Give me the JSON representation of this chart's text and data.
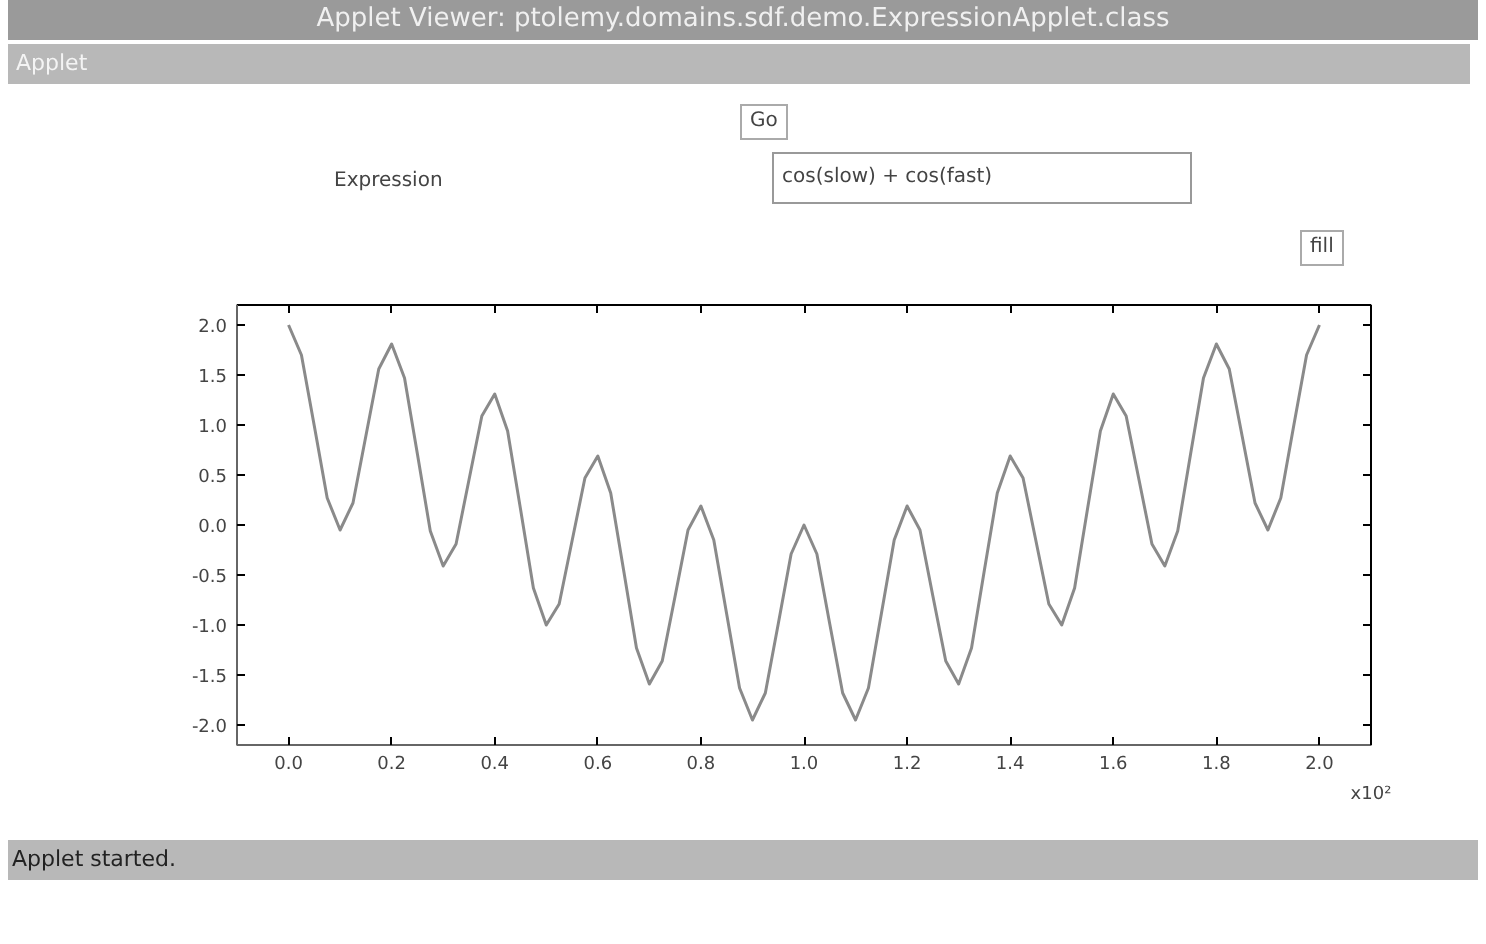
{
  "chart_data": {
    "type": "line",
    "title": "Applet Viewer: ptolemy.domains.sdf.demo.ExpressionApplet.class",
    "xlabel": "x10²",
    "annotations": [
      "Applet",
      "Go",
      "Expression",
      "cos(slow) + cos(fast)",
      "fill",
      "Applet started."
    ],
    "x": [
      0,
      0.025,
      0.05,
      0.075,
      0.1,
      0.125,
      0.15,
      0.175,
      0.2,
      0.225,
      0.25,
      0.275,
      0.3,
      0.325,
      0.35,
      0.375,
      0.4,
      0.425,
      0.45,
      0.475,
      0.5,
      0.525,
      0.55,
      0.575,
      0.6,
      0.625,
      0.65,
      0.675,
      0.7,
      0.725,
      0.75,
      0.775,
      0.8,
      0.825,
      0.85,
      0.875,
      0.9,
      0.925,
      0.95,
      0.975,
      1.0,
      1.025,
      1.05,
      1.075,
      1.1,
      1.125,
      1.15,
      1.175,
      1.2,
      1.225,
      1.25,
      1.275,
      1.3,
      1.325,
      1.35,
      1.375,
      1.4,
      1.425,
      1.45,
      1.475,
      1.5,
      1.525,
      1.55,
      1.575,
      1.6,
      1.625,
      1.65,
      1.675,
      1.7,
      1.725,
      1.75,
      1.775,
      1.8,
      1.825,
      1.85,
      1.875,
      1.9,
      1.925,
      1.95,
      1.975,
      2.0
    ],
    "series": [
      {
        "color": "#8a8a8a",
        "values": [
          2.0,
          1.7,
          0.99,
          0.27,
          -0.05,
          0.22,
          0.89,
          1.56,
          1.81,
          1.47,
          0.71,
          -0.06,
          -0.41,
          -0.19,
          0.45,
          1.09,
          1.31,
          0.94,
          0.16,
          -0.63,
          -1.0,
          -0.79,
          -0.16,
          0.47,
          0.69,
          0.32,
          -0.45,
          -1.23,
          -1.59,
          -1.36,
          -0.71,
          -0.05,
          0.19,
          -0.15,
          -0.89,
          -1.63,
          -1.95,
          -1.68,
          -0.99,
          -0.29,
          0.0,
          -0.29,
          -0.99,
          -1.68,
          -1.95,
          -1.63,
          -0.89,
          -0.15,
          0.19,
          -0.05,
          -0.71,
          -1.36,
          -1.59,
          -1.23,
          -0.45,
          0.32,
          0.69,
          0.47,
          -0.16,
          -0.79,
          -1.0,
          -0.63,
          0.16,
          0.94,
          1.31,
          1.09,
          0.45,
          -0.19,
          -0.41,
          -0.06,
          0.71,
          1.47,
          1.81,
          1.56,
          0.89,
          0.22,
          -0.05,
          0.27,
          0.99,
          1.7,
          2.0
        ]
      }
    ],
    "xlim": [
      -0.1,
      2.1
    ],
    "ylim": [
      -2.2,
      2.2
    ],
    "xticks": [
      {
        "value": 0,
        "label": "0.0"
      },
      {
        "value": 0.2,
        "label": "0.2"
      },
      {
        "value": 0.4,
        "label": "0.4"
      },
      {
        "value": 0.6,
        "label": "0.6"
      },
      {
        "value": 0.8,
        "label": "0.8"
      },
      {
        "value": 1.0,
        "label": "1.0"
      },
      {
        "value": 1.2,
        "label": "1.2"
      },
      {
        "value": 1.4,
        "label": "1.4"
      },
      {
        "value": 1.6,
        "label": "1.6"
      },
      {
        "value": 1.8,
        "label": "1.8"
      },
      {
        "value": 2.0,
        "label": "2.0"
      }
    ],
    "yticks": [
      {
        "value": -2,
        "label": "-2.0"
      },
      {
        "value": -1.5,
        "label": "-1.5"
      },
      {
        "value": -1,
        "label": "-1.0"
      },
      {
        "value": -0.5,
        "label": "-0.5"
      },
      {
        "value": 0,
        "label": "0.0"
      },
      {
        "value": 0.5,
        "label": "0.5"
      },
      {
        "value": 1,
        "label": "1.0"
      },
      {
        "value": 1.5,
        "label": "1.5"
      },
      {
        "value": 2,
        "label": "2.0"
      }
    ],
    "grid": false,
    "marker": "none",
    "line_style": "solid"
  }
}
